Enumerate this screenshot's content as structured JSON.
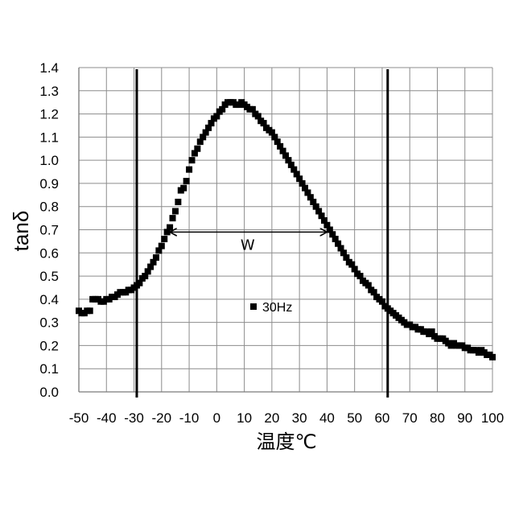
{
  "chart_data": {
    "type": "scatter",
    "xlabel": "温度℃",
    "ylabel": "tanδ",
    "xlim": [
      -50,
      100
    ],
    "ylim": [
      0.0,
      1.4
    ],
    "x_ticks": [
      -50,
      -40,
      -30,
      -20,
      -10,
      0,
      10,
      20,
      30,
      40,
      50,
      60,
      70,
      80,
      90,
      100
    ],
    "x_tick_labels": [
      "-50",
      "-40",
      "-30",
      "-20",
      "-10",
      "0",
      "10",
      "20",
      "30",
      "40",
      "50",
      "60",
      "70",
      "80",
      "90",
      "100"
    ],
    "y_ticks": [
      0.0,
      0.1,
      0.2,
      0.3,
      0.4,
      0.5,
      0.6,
      0.7,
      0.8,
      0.9,
      1.0,
      1.1,
      1.2,
      1.3,
      1.4
    ],
    "y_tick_labels": [
      "0.0",
      "0.1",
      "0.2",
      "0.3",
      "0.4",
      "0.5",
      "0.6",
      "0.7",
      "0.8",
      "0.9",
      "1.0",
      "1.1",
      "1.2",
      "1.3",
      "1.4"
    ],
    "grid": true,
    "legend_position": "center",
    "series": [
      {
        "name": "30Hz",
        "color": "#000000",
        "marker": "square",
        "points": [
          [
            -50,
            0.35
          ],
          [
            -49,
            0.34
          ],
          [
            -48,
            0.34
          ],
          [
            -47,
            0.35
          ],
          [
            -46,
            0.35
          ],
          [
            -45,
            0.4
          ],
          [
            -44,
            0.4
          ],
          [
            -43,
            0.4
          ],
          [
            -42,
            0.39
          ],
          [
            -41,
            0.39
          ],
          [
            -40,
            0.4
          ],
          [
            -39,
            0.4
          ],
          [
            -38,
            0.41
          ],
          [
            -37,
            0.41
          ],
          [
            -36,
            0.42
          ],
          [
            -35,
            0.43
          ],
          [
            -34,
            0.43
          ],
          [
            -33,
            0.43
          ],
          [
            -32,
            0.44
          ],
          [
            -31,
            0.44
          ],
          [
            -30,
            0.45
          ],
          [
            -29,
            0.46
          ],
          [
            -28,
            0.47
          ],
          [
            -27,
            0.49
          ],
          [
            -26,
            0.5
          ],
          [
            -25,
            0.52
          ],
          [
            -24,
            0.54
          ],
          [
            -23,
            0.56
          ],
          [
            -22,
            0.58
          ],
          [
            -21,
            0.61
          ],
          [
            -20,
            0.63
          ],
          [
            -19,
            0.66
          ],
          [
            -18,
            0.69
          ],
          [
            -17,
            0.71
          ],
          [
            -16,
            0.75
          ],
          [
            -15,
            0.78
          ],
          [
            -14,
            0.82
          ],
          [
            -13,
            0.87
          ],
          [
            -12,
            0.88
          ],
          [
            -11,
            0.91
          ],
          [
            -10,
            0.96
          ],
          [
            -9,
            1.0
          ],
          [
            -8,
            1.03
          ],
          [
            -7,
            1.05
          ],
          [
            -6,
            1.08
          ],
          [
            -5,
            1.1
          ],
          [
            -4,
            1.12
          ],
          [
            -3,
            1.14
          ],
          [
            -2,
            1.16
          ],
          [
            -1,
            1.18
          ],
          [
            0,
            1.19
          ],
          [
            1,
            1.21
          ],
          [
            2,
            1.22
          ],
          [
            3,
            1.24
          ],
          [
            4,
            1.25
          ],
          [
            5,
            1.25
          ],
          [
            6,
            1.25
          ],
          [
            7,
            1.24
          ],
          [
            8,
            1.24
          ],
          [
            9,
            1.25
          ],
          [
            10,
            1.24
          ],
          [
            11,
            1.23
          ],
          [
            12,
            1.22
          ],
          [
            13,
            1.22
          ],
          [
            14,
            1.2
          ],
          [
            15,
            1.19
          ],
          [
            16,
            1.17
          ],
          [
            17,
            1.16
          ],
          [
            18,
            1.14
          ],
          [
            19,
            1.13
          ],
          [
            20,
            1.12
          ],
          [
            21,
            1.1
          ],
          [
            22,
            1.08
          ],
          [
            23,
            1.06
          ],
          [
            24,
            1.04
          ],
          [
            25,
            1.02
          ],
          [
            26,
            1.0
          ],
          [
            27,
            0.98
          ],
          [
            28,
            0.96
          ],
          [
            29,
            0.94
          ],
          [
            30,
            0.92
          ],
          [
            31,
            0.9
          ],
          [
            32,
            0.88
          ],
          [
            33,
            0.86
          ],
          [
            34,
            0.84
          ],
          [
            35,
            0.82
          ],
          [
            36,
            0.8
          ],
          [
            37,
            0.78
          ],
          [
            38,
            0.76
          ],
          [
            39,
            0.74
          ],
          [
            40,
            0.72
          ],
          [
            41,
            0.7
          ],
          [
            42,
            0.68
          ],
          [
            43,
            0.66
          ],
          [
            44,
            0.64
          ],
          [
            45,
            0.62
          ],
          [
            46,
            0.6
          ],
          [
            47,
            0.58
          ],
          [
            48,
            0.56
          ],
          [
            49,
            0.55
          ],
          [
            50,
            0.53
          ],
          [
            51,
            0.51
          ],
          [
            52,
            0.5
          ],
          [
            53,
            0.48
          ],
          [
            54,
            0.47
          ],
          [
            55,
            0.46
          ],
          [
            56,
            0.44
          ],
          [
            57,
            0.43
          ],
          [
            58,
            0.41
          ],
          [
            59,
            0.4
          ],
          [
            60,
            0.39
          ],
          [
            61,
            0.37
          ],
          [
            62,
            0.36
          ],
          [
            63,
            0.35
          ],
          [
            64,
            0.34
          ],
          [
            65,
            0.33
          ],
          [
            66,
            0.32
          ],
          [
            67,
            0.31
          ],
          [
            68,
            0.3
          ],
          [
            69,
            0.29
          ],
          [
            70,
            0.29
          ],
          [
            71,
            0.28
          ],
          [
            72,
            0.28
          ],
          [
            73,
            0.27
          ],
          [
            74,
            0.27
          ],
          [
            75,
            0.26
          ],
          [
            76,
            0.26
          ],
          [
            77,
            0.25
          ],
          [
            78,
            0.26
          ],
          [
            79,
            0.24
          ],
          [
            80,
            0.23
          ],
          [
            81,
            0.23
          ],
          [
            82,
            0.23
          ],
          [
            83,
            0.22
          ],
          [
            84,
            0.21
          ],
          [
            85,
            0.2
          ],
          [
            86,
            0.21
          ],
          [
            87,
            0.2
          ],
          [
            88,
            0.2
          ],
          [
            89,
            0.2
          ],
          [
            90,
            0.19
          ],
          [
            91,
            0.19
          ],
          [
            92,
            0.18
          ],
          [
            93,
            0.18
          ],
          [
            94,
            0.18
          ],
          [
            95,
            0.17
          ],
          [
            96,
            0.18
          ],
          [
            97,
            0.17
          ],
          [
            98,
            0.16
          ],
          [
            99,
            0.16
          ],
          [
            100,
            0.15
          ]
        ]
      }
    ],
    "vertical_lines": [
      -29,
      62
    ],
    "annotations": [
      {
        "label": "W",
        "from": [
          -17,
          0.69
        ],
        "to": [
          40,
          0.69
        ]
      }
    ]
  }
}
